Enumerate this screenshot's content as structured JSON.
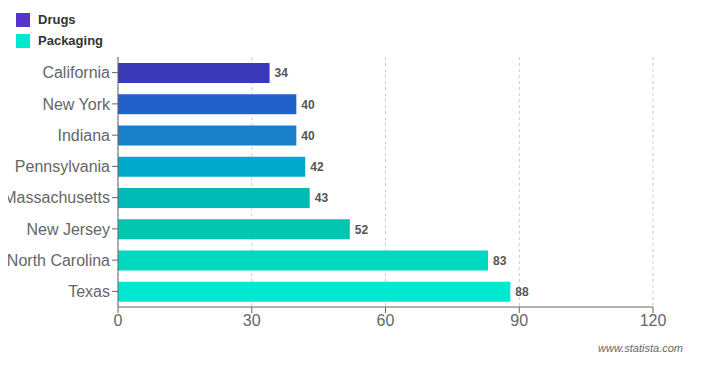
{
  "chart_data": {
    "type": "bar",
    "orientation": "horizontal",
    "categories": [
      "Texas",
      "North Carolina",
      "New Jersey",
      "Massachusetts",
      "Pennsylvania",
      "Indiana",
      "New York",
      "California"
    ],
    "values": [
      88,
      83,
      52,
      43,
      42,
      40,
      40,
      34
    ],
    "colors": [
      "#00E8D0",
      "#00D8C0",
      "#00C8B0",
      "#00BAB8",
      "#00AACC",
      "#1A80C8",
      "#2060C8",
      "#3A3AB8"
    ],
    "xlim": [
      0,
      120
    ],
    "xticks": [
      0,
      30,
      60,
      90,
      120
    ],
    "grid": true,
    "data_labels": true,
    "legend": "top left",
    "annotations": [
      {
        "text": "Drugs",
        "color": "#5533CC"
      },
      {
        "text": "Packaging",
        "color": "#00E8D0"
      },
      {
        "text": "www.statista.com"
      }
    ]
  }
}
